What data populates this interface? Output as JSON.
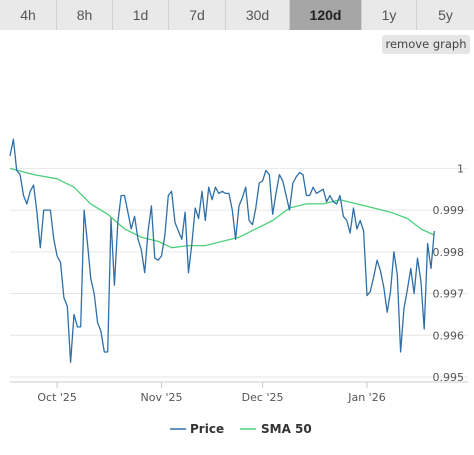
{
  "tabs": [
    {
      "label": "4h",
      "active": false
    },
    {
      "label": "8h",
      "active": false
    },
    {
      "label": "1d",
      "active": false
    },
    {
      "label": "7d",
      "active": false
    },
    {
      "label": "30d",
      "active": false
    },
    {
      "label": "120d",
      "active": true
    },
    {
      "label": "1y",
      "active": false
    },
    {
      "label": "5y",
      "active": false
    }
  ],
  "remove_graph_label": "remove graph",
  "chart_data": {
    "type": "line",
    "title": "",
    "xlabel": "",
    "ylabel": "",
    "x_range": [
      "2025-09-17",
      "2026-01-31"
    ],
    "ylim": [
      0.99488,
      1.00255
    ],
    "y_ticks": [
      {
        "value": 0.995,
        "label": "0.995"
      },
      {
        "value": 0.996,
        "label": "0.996"
      },
      {
        "value": 0.997,
        "label": "0.997"
      },
      {
        "value": 0.998,
        "label": "0.998"
      },
      {
        "value": 0.999,
        "label": "0.999"
      },
      {
        "value": 1.0,
        "label": "1"
      }
    ],
    "x_ticks": [
      {
        "date": "2025-10-01",
        "label": "Oct '25"
      },
      {
        "date": "2025-11-01",
        "label": "Nov '25"
      },
      {
        "date": "2025-12-01",
        "label": "Dec '25"
      },
      {
        "date": "2026-01-01",
        "label": "Jan '26"
      }
    ],
    "grid": {
      "horizontal": true,
      "vertical": false
    },
    "legend_position": "bottom-center",
    "series": [
      {
        "name": "Price",
        "color": "#2e6fa7",
        "points": [
          [
            "2025-09-17",
            1.0003
          ],
          [
            "2025-09-18",
            1.0007
          ],
          [
            "2025-09-19",
            0.99995
          ],
          [
            "2025-09-20",
            0.99985
          ],
          [
            "2025-09-21",
            0.99935
          ],
          [
            "2025-09-22",
            0.99915
          ],
          [
            "2025-09-23",
            0.99945
          ],
          [
            "2025-09-24",
            0.9996
          ],
          [
            "2025-09-25",
            0.99895
          ],
          [
            "2025-09-26",
            0.9981
          ],
          [
            "2025-09-27",
            0.999
          ],
          [
            "2025-09-28",
            0.999
          ],
          [
            "2025-09-29",
            0.999
          ],
          [
            "2025-09-30",
            0.9983
          ],
          [
            "2025-10-01",
            0.9979
          ],
          [
            "2025-10-02",
            0.99775
          ],
          [
            "2025-10-03",
            0.9969
          ],
          [
            "2025-10-04",
            0.9967
          ],
          [
            "2025-10-05",
            0.99535
          ],
          [
            "2025-10-06",
            0.9965
          ],
          [
            "2025-10-07",
            0.9962
          ],
          [
            "2025-10-08",
            0.9962
          ],
          [
            "2025-10-09",
            0.999
          ],
          [
            "2025-10-10",
            0.9982
          ],
          [
            "2025-10-11",
            0.99735
          ],
          [
            "2025-10-12",
            0.997
          ],
          [
            "2025-10-13",
            0.9963
          ],
          [
            "2025-10-14",
            0.9961
          ],
          [
            "2025-10-15",
            0.9956
          ],
          [
            "2025-10-16",
            0.9956
          ],
          [
            "2025-10-17",
            0.9988
          ],
          [
            "2025-10-18",
            0.9972
          ],
          [
            "2025-10-19",
            0.9987
          ],
          [
            "2025-10-20",
            0.99935
          ],
          [
            "2025-10-21",
            0.99935
          ],
          [
            "2025-10-22",
            0.99895
          ],
          [
            "2025-10-23",
            0.99855
          ],
          [
            "2025-10-24",
            0.99885
          ],
          [
            "2025-10-25",
            0.9983
          ],
          [
            "2025-10-26",
            0.99805
          ],
          [
            "2025-10-27",
            0.9975
          ],
          [
            "2025-10-28",
            0.9985
          ],
          [
            "2025-10-29",
            0.9991
          ],
          [
            "2025-10-30",
            0.99785
          ],
          [
            "2025-10-31",
            0.9978
          ],
          [
            "2025-11-01",
            0.9979
          ],
          [
            "2025-11-02",
            0.9984
          ],
          [
            "2025-11-03",
            0.99935
          ],
          [
            "2025-11-04",
            0.99945
          ],
          [
            "2025-11-05",
            0.9987
          ],
          [
            "2025-11-06",
            0.9985
          ],
          [
            "2025-11-07",
            0.9983
          ],
          [
            "2025-11-08",
            0.99895
          ],
          [
            "2025-11-09",
            0.9975
          ],
          [
            "2025-11-10",
            0.9982
          ],
          [
            "2025-11-11",
            0.99905
          ],
          [
            "2025-11-12",
            0.9988
          ],
          [
            "2025-11-13",
            0.99945
          ],
          [
            "2025-11-14",
            0.99875
          ],
          [
            "2025-11-15",
            0.99955
          ],
          [
            "2025-11-16",
            0.99925
          ],
          [
            "2025-11-17",
            0.99955
          ],
          [
            "2025-11-18",
            0.9994
          ],
          [
            "2025-11-19",
            0.99945
          ],
          [
            "2025-11-20",
            0.9994
          ],
          [
            "2025-11-21",
            0.9994
          ],
          [
            "2025-11-22",
            0.999
          ],
          [
            "2025-11-23",
            0.9983
          ],
          [
            "2025-11-24",
            0.9991
          ],
          [
            "2025-11-25",
            0.9993
          ],
          [
            "2025-11-26",
            0.99955
          ],
          [
            "2025-11-27",
            0.99875
          ],
          [
            "2025-11-28",
            0.99865
          ],
          [
            "2025-11-29",
            0.99905
          ],
          [
            "2025-11-30",
            0.99965
          ],
          [
            "2025-12-01",
            0.9997
          ],
          [
            "2025-12-02",
            0.99995
          ],
          [
            "2025-12-03",
            0.99985
          ],
          [
            "2025-12-04",
            0.9989
          ],
          [
            "2025-12-05",
            0.9994
          ],
          [
            "2025-12-06",
            0.99985
          ],
          [
            "2025-12-07",
            0.9997
          ],
          [
            "2025-12-08",
            0.99935
          ],
          [
            "2025-12-09",
            0.999
          ],
          [
            "2025-12-10",
            0.99965
          ],
          [
            "2025-12-11",
            0.9998
          ],
          [
            "2025-12-12",
            0.9999
          ],
          [
            "2025-12-13",
            0.99985
          ],
          [
            "2025-12-14",
            0.99935
          ],
          [
            "2025-12-15",
            0.99935
          ],
          [
            "2025-12-16",
            0.99955
          ],
          [
            "2025-12-17",
            0.9994
          ],
          [
            "2025-12-18",
            0.99945
          ],
          [
            "2025-12-19",
            0.9995
          ],
          [
            "2025-12-20",
            0.9992
          ],
          [
            "2025-12-21",
            0.99935
          ],
          [
            "2025-12-22",
            0.9992
          ],
          [
            "2025-12-23",
            0.99915
          ],
          [
            "2025-12-24",
            0.99935
          ],
          [
            "2025-12-25",
            0.99885
          ],
          [
            "2025-12-26",
            0.99875
          ],
          [
            "2025-12-27",
            0.99845
          ],
          [
            "2025-12-28",
            0.99905
          ],
          [
            "2025-12-29",
            0.99855
          ],
          [
            "2025-12-30",
            0.99875
          ],
          [
            "2025-12-31",
            0.9985
          ],
          [
            "2026-01-01",
            0.99695
          ],
          [
            "2026-01-02",
            0.99705
          ],
          [
            "2026-01-03",
            0.9974
          ],
          [
            "2026-01-04",
            0.9978
          ],
          [
            "2026-01-05",
            0.99755
          ],
          [
            "2026-01-06",
            0.99715
          ],
          [
            "2026-01-07",
            0.99655
          ],
          [
            "2026-01-08",
            0.99705
          ],
          [
            "2026-01-09",
            0.998
          ],
          [
            "2026-01-10",
            0.99745
          ],
          [
            "2026-01-11",
            0.9956
          ],
          [
            "2026-01-12",
            0.99665
          ],
          [
            "2026-01-13",
            0.9971
          ],
          [
            "2026-01-14",
            0.9976
          ],
          [
            "2026-01-15",
            0.997
          ],
          [
            "2026-01-16",
            0.99785
          ],
          [
            "2026-01-17",
            0.9973
          ],
          [
            "2026-01-18",
            0.99615
          ],
          [
            "2026-01-19",
            0.9982
          ],
          [
            "2026-01-20",
            0.9976
          ],
          [
            "2026-01-21",
            0.9985
          ]
        ]
      },
      {
        "name": "SMA 50",
        "color": "#4ccf7b",
        "points": [
          [
            "2025-09-17",
            1.0
          ],
          [
            "2025-09-24",
            0.99985
          ],
          [
            "2025-10-01",
            0.99975
          ],
          [
            "2025-10-06",
            0.99955
          ],
          [
            "2025-10-11",
            0.99915
          ],
          [
            "2025-10-16",
            0.9989
          ],
          [
            "2025-10-21",
            0.99855
          ],
          [
            "2025-10-26",
            0.99835
          ],
          [
            "2025-10-31",
            0.99825
          ],
          [
            "2025-11-04",
            0.9981
          ],
          [
            "2025-11-09",
            0.99815
          ],
          [
            "2025-11-14",
            0.99815
          ],
          [
            "2025-11-19",
            0.99825
          ],
          [
            "2025-11-24",
            0.99835
          ],
          [
            "2025-11-29",
            0.99855
          ],
          [
            "2025-12-04",
            0.99875
          ],
          [
            "2025-12-09",
            0.99905
          ],
          [
            "2025-12-14",
            0.99915
          ],
          [
            "2025-12-19",
            0.99915
          ],
          [
            "2025-12-24",
            0.99925
          ],
          [
            "2025-12-29",
            0.99915
          ],
          [
            "2026-01-03",
            0.99905
          ],
          [
            "2026-01-08",
            0.99895
          ],
          [
            "2026-01-13",
            0.9988
          ],
          [
            "2026-01-17",
            0.99855
          ],
          [
            "2026-01-21",
            0.9984
          ]
        ]
      }
    ]
  }
}
